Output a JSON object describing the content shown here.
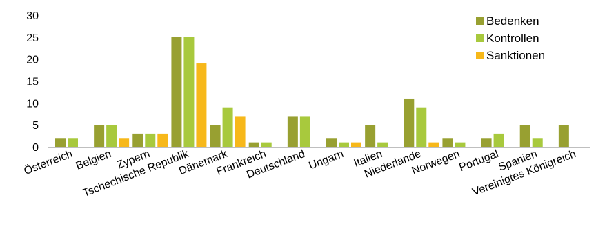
{
  "chart_data": {
    "type": "bar",
    "categories": [
      "Österreich",
      "Belgien",
      "Zypern",
      "Tschechische Republik",
      "Dänemark",
      "Frankreich",
      "Deutschland",
      "Ungarn",
      "Italien",
      "Niederlande",
      "Norwegen",
      "Portugal",
      "Spanien",
      "Vereinigtes Königreich"
    ],
    "series": [
      {
        "name": "Bedenken",
        "color": "#98A031",
        "values": [
          2,
          5,
          3,
          25,
          5,
          1,
          7,
          2,
          5,
          11,
          2,
          2,
          5,
          5
        ]
      },
      {
        "name": "Kontrollen",
        "color": "#A8C93D",
        "values": [
          2,
          5,
          3,
          25,
          9,
          1,
          7,
          1,
          1,
          9,
          1,
          3,
          2,
          0
        ]
      },
      {
        "name": "Sanktionen",
        "color": "#F7B81A",
        "values": [
          0,
          2,
          3,
          19,
          7,
          0,
          0,
          1,
          0,
          1,
          0,
          0,
          0,
          0
        ]
      }
    ],
    "yticks": [
      0,
      5,
      10,
      15,
      20,
      25,
      30
    ],
    "ylim": [
      0,
      30
    ],
    "title": "",
    "xlabel": "",
    "ylabel": "",
    "grid": false,
    "legend_position": "top-right"
  }
}
